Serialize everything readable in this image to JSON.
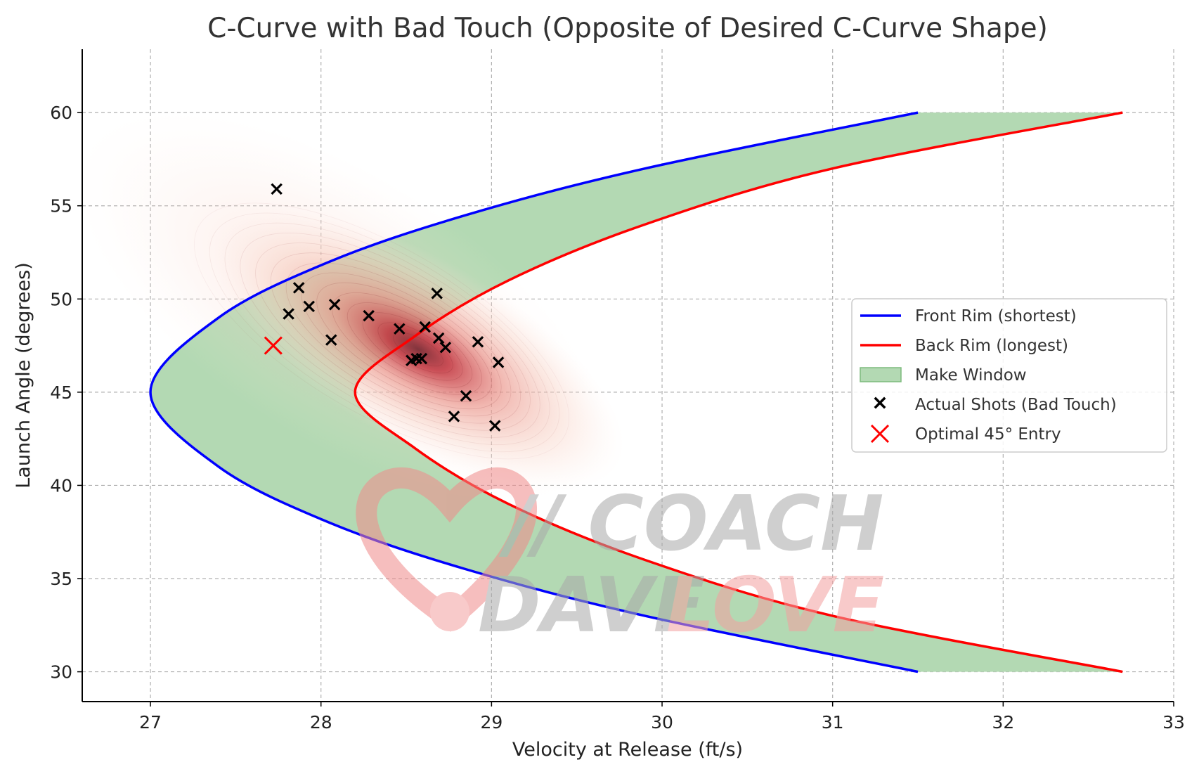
{
  "chart_data": {
    "type": "line",
    "title": "C-Curve with Bad Touch (Opposite of Desired C-Curve Shape)",
    "xlabel": "Velocity at Release (ft/s)",
    "ylabel": "Launch Angle (degrees)",
    "xlim": [
      26.6,
      33.0
    ],
    "ylim": [
      28.4,
      63.4
    ],
    "xticks": [
      27,
      28,
      29,
      30,
      31,
      32,
      33
    ],
    "yticks": [
      30,
      35,
      40,
      45,
      50,
      55,
      60
    ],
    "grid": true,
    "legend_position": "right",
    "series": [
      {
        "name": "Front Rim (shortest)",
        "color": "#0000ff",
        "kind": "curve",
        "x": [
          31.5,
          29.9,
          28.85,
          28.05,
          27.4,
          27.0,
          27.4,
          28.05,
          28.85,
          29.9,
          31.5
        ],
        "y": [
          60,
          57,
          54.5,
          52,
          49,
          45,
          41,
          38,
          35.5,
          33,
          30
        ]
      },
      {
        "name": "Back Rim (longest)",
        "color": "#ff0000",
        "kind": "curve",
        "x": [
          32.7,
          31.0,
          29.9,
          29.1,
          28.55,
          28.2,
          28.55,
          29.1,
          29.9,
          31.0,
          32.7
        ],
        "y": [
          60,
          57,
          54,
          51,
          48,
          45,
          42,
          39,
          36,
          33,
          30
        ]
      },
      {
        "name": "Make Window",
        "color": "#b3d9b3",
        "kind": "band",
        "between": [
          "Front Rim (shortest)",
          "Back Rim (longest)"
        ]
      },
      {
        "name": "Actual Shots (Bad Touch)",
        "color": "#000000",
        "kind": "scatter",
        "points": [
          {
            "x": 27.74,
            "y": 55.9
          },
          {
            "x": 27.87,
            "y": 50.6
          },
          {
            "x": 27.81,
            "y": 49.2
          },
          {
            "x": 27.93,
            "y": 49.6
          },
          {
            "x": 28.08,
            "y": 49.7
          },
          {
            "x": 28.06,
            "y": 47.8
          },
          {
            "x": 28.28,
            "y": 49.1
          },
          {
            "x": 28.46,
            "y": 48.4
          },
          {
            "x": 28.61,
            "y": 48.5
          },
          {
            "x": 28.68,
            "y": 50.3
          },
          {
            "x": 28.69,
            "y": 47.9
          },
          {
            "x": 28.73,
            "y": 47.4
          },
          {
            "x": 28.53,
            "y": 46.7
          },
          {
            "x": 28.56,
            "y": 46.8
          },
          {
            "x": 28.59,
            "y": 46.8
          },
          {
            "x": 28.92,
            "y": 47.7
          },
          {
            "x": 29.04,
            "y": 46.6
          },
          {
            "x": 28.85,
            "y": 44.8
          },
          {
            "x": 28.78,
            "y": 43.7
          },
          {
            "x": 29.02,
            "y": 43.2
          }
        ]
      },
      {
        "name": "Optimal 45° Entry",
        "color": "#ff0000",
        "kind": "marker",
        "points": [
          {
            "x": 27.72,
            "y": 47.5
          }
        ]
      }
    ],
    "density": {
      "center": {
        "x": 28.57,
        "y": 47.3
      },
      "color_inner": "#c0303a",
      "color_outer": "#fde8e0"
    }
  },
  "watermark": {
    "line1": "// COACH",
    "line2_a": "DAVE",
    "line2_b": "LOVE"
  }
}
